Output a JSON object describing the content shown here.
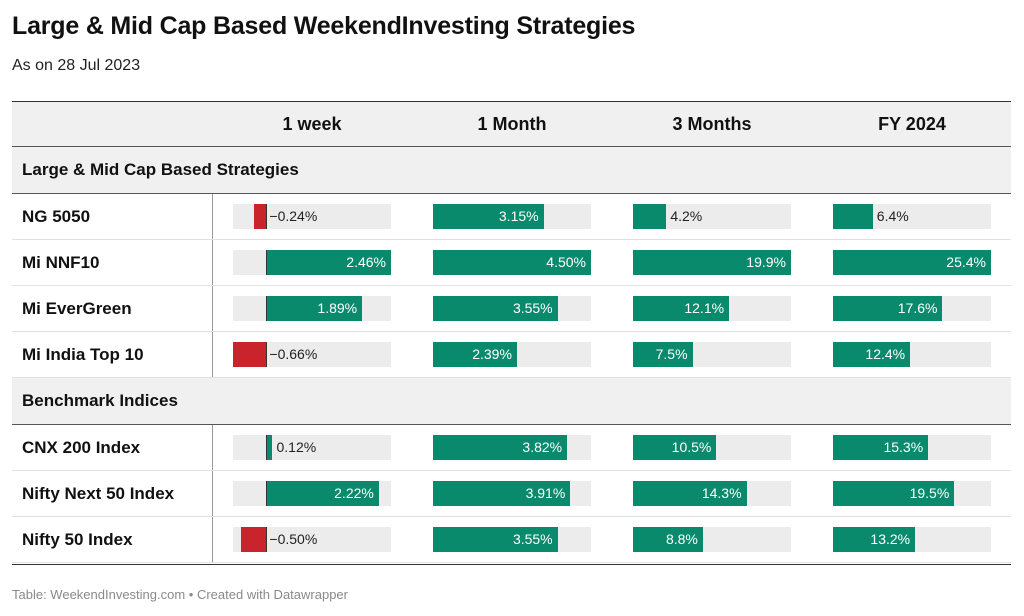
{
  "title": "Large & Mid Cap Based WeekendInvesting Strategies",
  "subtitle": "As on 28 Jul 2023",
  "footer": "Table: WeekendInvesting.com • Created with Datawrapper",
  "colors": {
    "positive": "#0a8a6c",
    "negative": "#c9232b",
    "track": "#ececec",
    "band": "#f0f0f0"
  },
  "chart_data": {
    "type": "table",
    "columns": [
      "1 week",
      "1 Month",
      "3 Months",
      "FY 2024"
    ],
    "groups": [
      {
        "label": "Large & Mid Cap Based Strategies",
        "rows": [
          {
            "name": "NG 5050",
            "values": [
              -0.24,
              3.15,
              4.2,
              6.4
            ],
            "labels": [
              "−0.24%",
              "3.15%",
              "4.2%",
              "6.4%"
            ]
          },
          {
            "name": "Mi NNF10",
            "values": [
              2.46,
              4.5,
              19.9,
              25.4
            ],
            "labels": [
              "2.46%",
              "4.50%",
              "19.9%",
              "25.4%"
            ]
          },
          {
            "name": "Mi EverGreen",
            "values": [
              1.89,
              3.55,
              12.1,
              17.6
            ],
            "labels": [
              "1.89%",
              "3.55%",
              "12.1%",
              "17.6%"
            ]
          },
          {
            "name": "Mi India Top 10",
            "values": [
              -0.66,
              2.39,
              7.5,
              12.4
            ],
            "labels": [
              "−0.66%",
              "2.39%",
              "7.5%",
              "12.4%"
            ]
          }
        ]
      },
      {
        "label": "Benchmark Indices",
        "rows": [
          {
            "name": "CNX 200 Index",
            "values": [
              0.12,
              3.82,
              10.5,
              15.3
            ],
            "labels": [
              "0.12%",
              "3.82%",
              "10.5%",
              "15.3%"
            ]
          },
          {
            "name": "Nifty Next 50 Index",
            "values": [
              2.22,
              3.91,
              14.3,
              19.5
            ],
            "labels": [
              "2.22%",
              "3.91%",
              "14.3%",
              "19.5%"
            ]
          },
          {
            "name": "Nifty 50 Index",
            "values": [
              -0.5,
              3.55,
              8.8,
              13.2
            ],
            "labels": [
              "−0.50%",
              "3.55%",
              "8.8%",
              "13.2%"
            ]
          }
        ]
      }
    ],
    "column_ranges": [
      [
        -0.66,
        2.46
      ],
      [
        0,
        4.5
      ],
      [
        0,
        19.9
      ],
      [
        0,
        25.4
      ]
    ]
  }
}
